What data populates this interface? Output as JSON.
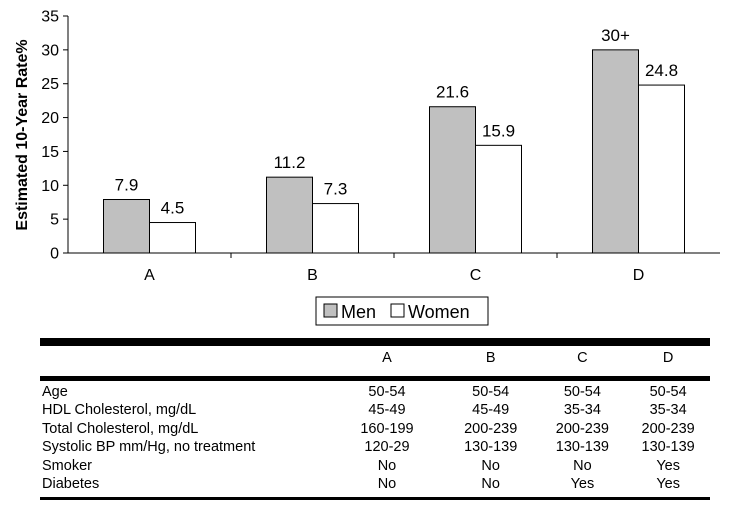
{
  "chart_data": {
    "type": "bar",
    "title": "",
    "xlabel": "",
    "ylabel": "Estimated 10-Year Rate%",
    "ylim": [
      0,
      35
    ],
    "yticks": [
      "0",
      "5",
      "10",
      "15",
      "20",
      "25",
      "30",
      "35"
    ],
    "categories": [
      "A",
      "B",
      "C",
      "D"
    ],
    "series": [
      {
        "name": "Men",
        "values": [
          7.9,
          11.2,
          21.6,
          30
        ],
        "labels": [
          "7.9",
          "11.2",
          "21.6",
          "30+"
        ],
        "color": "#c0c0c0"
      },
      {
        "name": "Women",
        "values": [
          4.5,
          7.3,
          15.9,
          24.8
        ],
        "labels": [
          "4.5",
          "7.3",
          "15.9",
          "24.8"
        ],
        "color": "#ffffff"
      }
    ],
    "legend": {
      "position": "bottom"
    },
    "grid": false
  },
  "table": {
    "columns": [
      "A",
      "B",
      "C",
      "D"
    ],
    "rows": [
      {
        "label": "Age",
        "cells": [
          "50-54",
          "50-54",
          "50-54",
          "50-54"
        ]
      },
      {
        "label": "HDL Cholesterol, mg/dL",
        "cells": [
          "45-49",
          "45-49",
          "35-34",
          "35-34"
        ]
      },
      {
        "label": "Total Cholesterol, mg/dL",
        "cells": [
          "160-199",
          "200-239",
          "200-239",
          "200-239"
        ]
      },
      {
        "label": "Systolic BP mm/Hg, no treatment",
        "cells": [
          "120-29",
          "130-139",
          "130-139",
          "130-139"
        ]
      },
      {
        "label": "Smoker",
        "cells": [
          "No",
          "No",
          "No",
          "Yes"
        ]
      },
      {
        "label": "Diabetes",
        "cells": [
          "No",
          "No",
          "Yes",
          "Yes"
        ]
      }
    ]
  }
}
